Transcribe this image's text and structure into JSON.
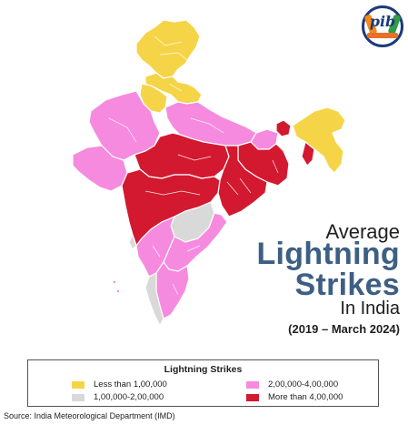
{
  "colors": {
    "less_than_1lakh": "#f5d547",
    "one_to_two_lakh": "#d9d9d9",
    "two_to_four_lakh": "#f58adf",
    "more_than_four_lakh": "#d3192f",
    "title_blue": "#3e5f84"
  },
  "logo": {
    "text": "pib"
  },
  "title": {
    "line1": "Average",
    "line2": "Lightning",
    "line3": "Strikes",
    "line4": "In India",
    "period": "(2019 – March 2024)"
  },
  "legend": {
    "title": "Lightning Strikes",
    "items": [
      {
        "label": "Less than 1,00,000",
        "color": "#f5d547"
      },
      {
        "label": "1,00,000-2,00,000",
        "color": "#d9d9d9"
      },
      {
        "label": "2,00,000-4,00,000",
        "color": "#f58adf"
      },
      {
        "label": "More than 4,00,000",
        "color": "#d3192f"
      }
    ]
  },
  "source": "Source: India Meteorological Department (IMD)"
}
